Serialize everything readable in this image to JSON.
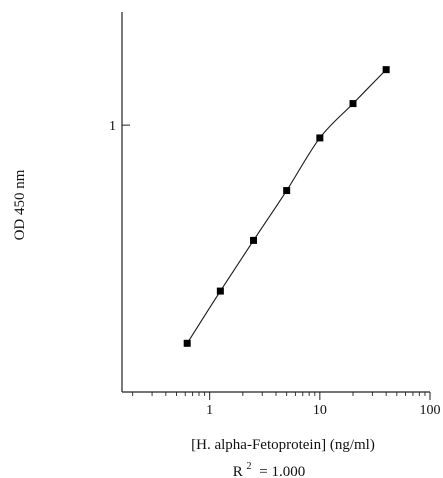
{
  "chart_data": {
    "type": "scatter",
    "xlabel": "[H. alpha-Fetoprotein] (ng/ml)",
    "ylabel": "OD 450 nm",
    "annotation": {
      "r_label": "R",
      "r_superscript": "2",
      "r_value": "= 1.000"
    },
    "x_scale": "log",
    "y_scale": "log",
    "xlim": [
      0.16,
      100
    ],
    "ylim": [
      0.22,
      1.9
    ],
    "x_ticks": [
      {
        "value": 1,
        "label": "1"
      },
      {
        "value": 10,
        "label": "10"
      },
      {
        "value": 100,
        "label": "100"
      }
    ],
    "y_ticks": [
      {
        "value": 1,
        "label": "1"
      }
    ],
    "series": [
      {
        "x": [
          0.625,
          1.25,
          2.5,
          5,
          10,
          20,
          40
        ],
        "y": [
          0.29,
          0.39,
          0.52,
          0.69,
          0.93,
          1.13,
          1.37
        ]
      }
    ],
    "marker": "square",
    "line_style": "smooth",
    "grid": false,
    "colors": {
      "axis": "#222222",
      "marker": "#000000",
      "curve": "#1a1a1a",
      "text": "#111111"
    }
  }
}
